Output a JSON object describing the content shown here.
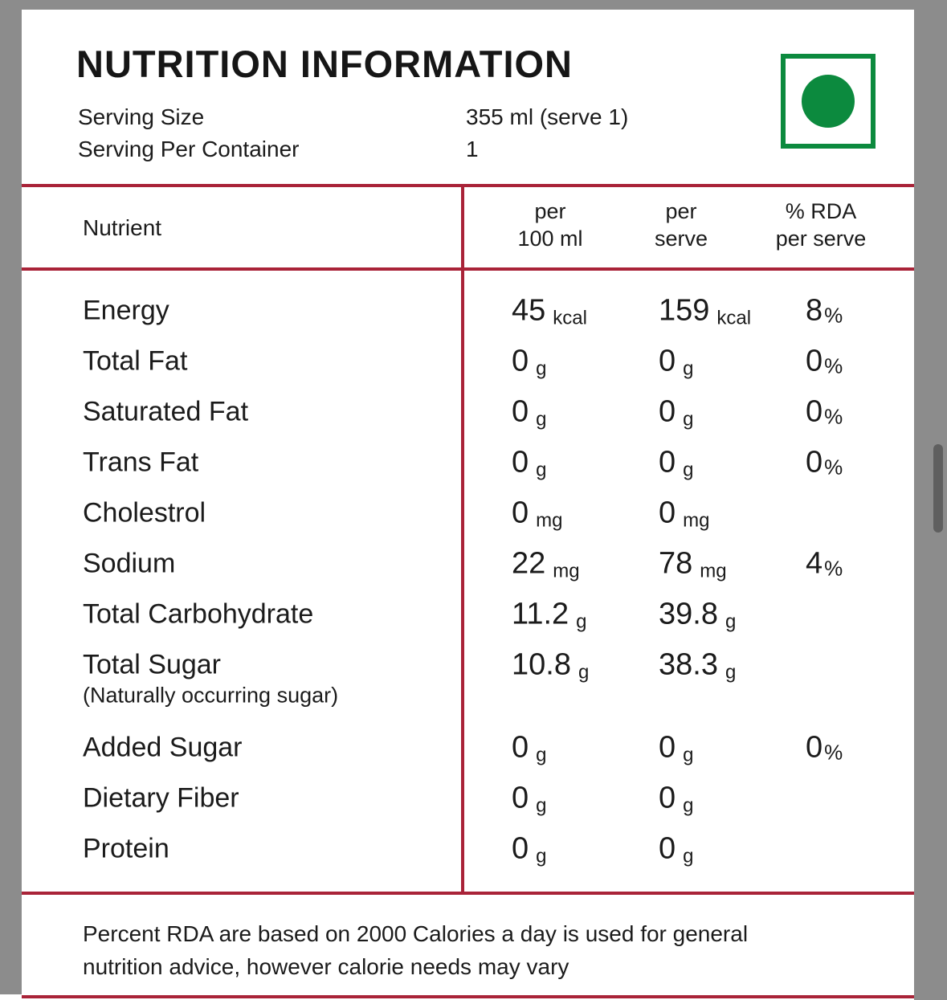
{
  "colors": {
    "accent_red": "#a92338",
    "veg_green": "#0c8a3e",
    "bg_gray": "#8c8c8c",
    "thumb_gray": "#5f5f5f"
  },
  "header": {
    "title": "NUTRITION INFORMATION"
  },
  "serving": {
    "size_label": "Serving Size",
    "size_value": "355 ml (serve 1)",
    "per_container_label": "Serving Per Container",
    "per_container_value": "1"
  },
  "veg_mark": {
    "meaning": "vegetarian"
  },
  "table": {
    "header": {
      "nutrient": "Nutrient",
      "per100_line1": "per",
      "per100_line2": "100 ml",
      "perserve_line1": "per",
      "perserve_line2": "serve",
      "rda_line1": "% RDA",
      "rda_line2": "per serve"
    },
    "pct_symbol": "%",
    "rows": [
      {
        "label": "Energy",
        "sub": "",
        "per100": {
          "num": "45",
          "unit": "kcal"
        },
        "perserve": {
          "num": "159",
          "unit": "kcal"
        },
        "rda": "8"
      },
      {
        "label": "Total Fat",
        "sub": "",
        "per100": {
          "num": "0",
          "unit": "g"
        },
        "perserve": {
          "num": "0",
          "unit": "g"
        },
        "rda": "0"
      },
      {
        "label": "Saturated Fat",
        "sub": "",
        "per100": {
          "num": "0",
          "unit": "g"
        },
        "perserve": {
          "num": "0",
          "unit": "g"
        },
        "rda": "0"
      },
      {
        "label": "Trans Fat",
        "sub": "",
        "per100": {
          "num": "0",
          "unit": "g"
        },
        "perserve": {
          "num": "0",
          "unit": "g"
        },
        "rda": "0"
      },
      {
        "label": "Cholestrol",
        "sub": "",
        "per100": {
          "num": "0",
          "unit": "mg"
        },
        "perserve": {
          "num": "0",
          "unit": "mg"
        },
        "rda": ""
      },
      {
        "label": "Sodium",
        "sub": "",
        "per100": {
          "num": "22",
          "unit": "mg"
        },
        "perserve": {
          "num": "78",
          "unit": "mg"
        },
        "rda": "4"
      },
      {
        "label": "Total Carbohydrate",
        "sub": "",
        "per100": {
          "num": "11.2",
          "unit": "g"
        },
        "perserve": {
          "num": "39.8",
          "unit": "g"
        },
        "rda": ""
      },
      {
        "label": "Total Sugar",
        "sub": "(Naturally occurring sugar)",
        "per100": {
          "num": "10.8",
          "unit": "g"
        },
        "perserve": {
          "num": "38.3",
          "unit": "g"
        },
        "rda": ""
      },
      {
        "label": "Added Sugar",
        "sub": "",
        "per100": {
          "num": "0",
          "unit": "g"
        },
        "perserve": {
          "num": "0",
          "unit": "g"
        },
        "rda": "0"
      },
      {
        "label": "Dietary Fiber",
        "sub": "",
        "per100": {
          "num": "0",
          "unit": "g"
        },
        "perserve": {
          "num": "0",
          "unit": "g"
        },
        "rda": ""
      },
      {
        "label": "Protein",
        "sub": "",
        "per100": {
          "num": "0",
          "unit": "g"
        },
        "perserve": {
          "num": "0",
          "unit": "g"
        },
        "rda": ""
      }
    ]
  },
  "footer": {
    "note": "Percent RDA are based on 2000 Calories a day is used for general nutrition advice, however calorie needs may vary"
  }
}
